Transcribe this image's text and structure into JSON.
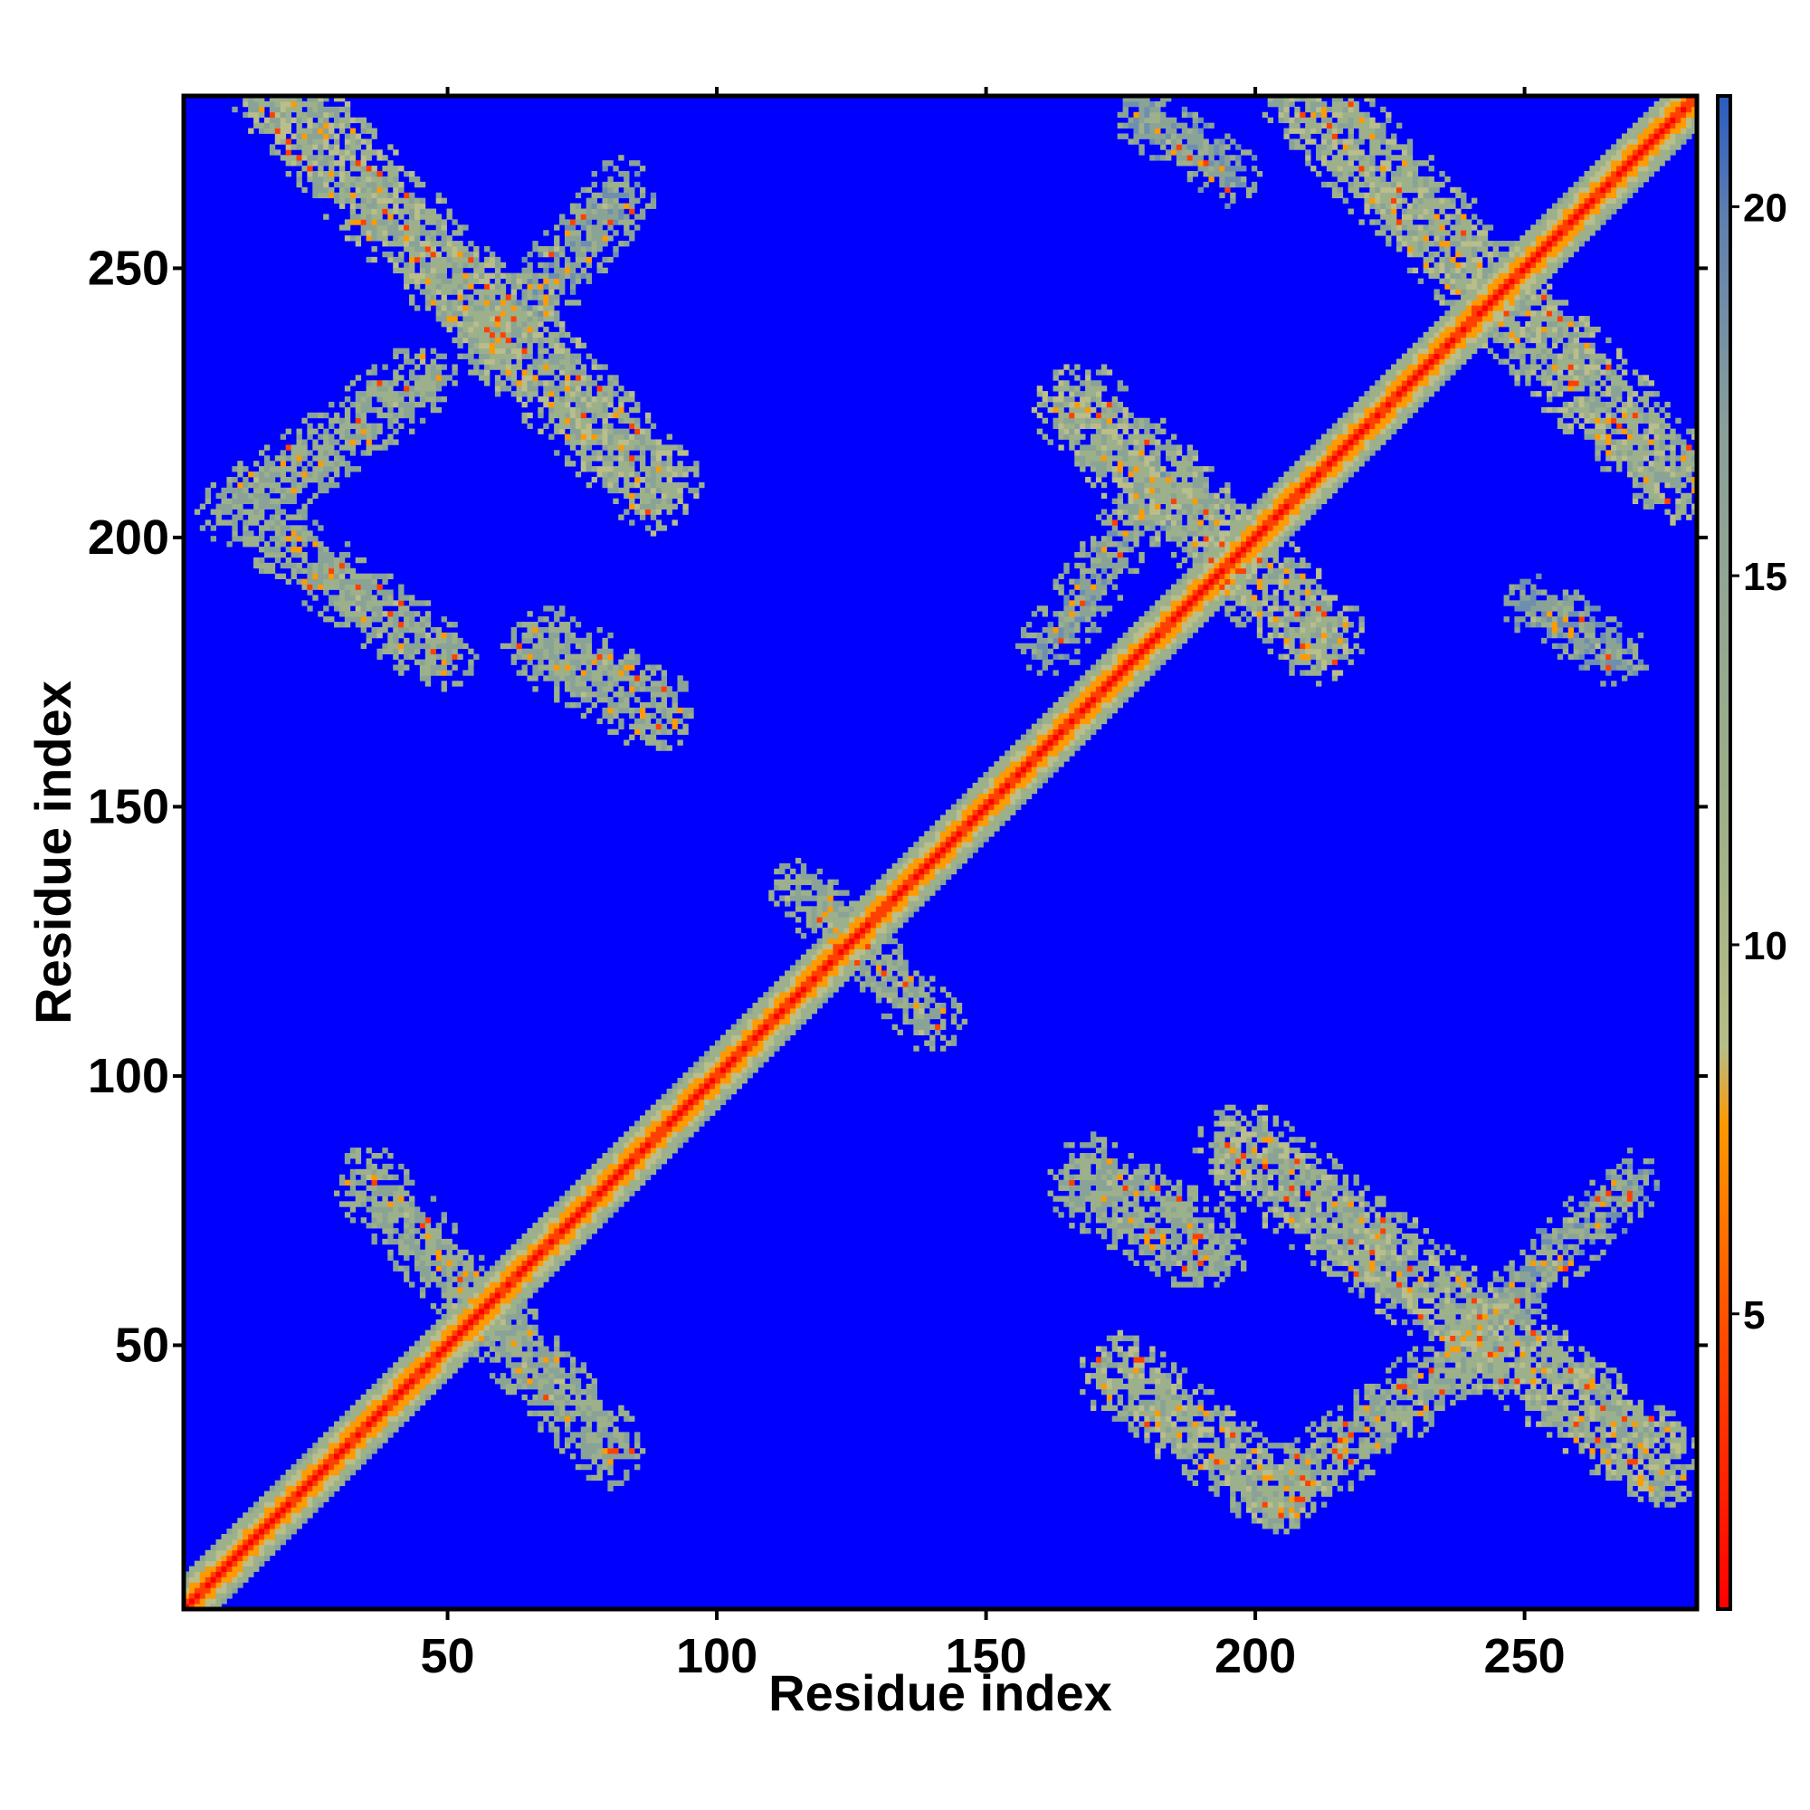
{
  "chart_data": {
    "type": "heatmap",
    "title": "",
    "xlabel": "Residue index",
    "ylabel": "Residue index",
    "xlim": [
      1,
      282
    ],
    "ylim": [
      1,
      282
    ],
    "x_ticks": [
      50,
      100,
      150,
      200,
      250
    ],
    "y_ticks": [
      50,
      100,
      150,
      200,
      250
    ],
    "colorbar": {
      "range": [
        1,
        21.5
      ],
      "ticks": [
        5,
        10,
        15,
        20
      ],
      "colors": {
        "low": "#ff0000",
        "mid_low": "#ff8c00",
        "mid": "#9aae8a",
        "high": "#5f7fb0",
        "background": "#0000ff"
      }
    },
    "background_value": 21,
    "diagonal": {
      "from": [
        1,
        1
      ],
      "to": [
        282,
        282
      ],
      "center_value": 2,
      "halfwidth_residues": 6
    },
    "contact_segments": [
      {
        "from": [
          18,
          282
        ],
        "to": [
          88,
          210
        ],
        "halfwidth": 6,
        "value": 11
      },
      {
        "from": [
          10,
          205
        ],
        "to": [
          45,
          230
        ],
        "halfwidth": 4,
        "value": 12
      },
      {
        "from": [
          18,
          200
        ],
        "to": [
          48,
          178
        ],
        "halfwidth": 4,
        "value": 12
      },
      {
        "from": [
          58,
          236
        ],
        "to": [
          82,
          264
        ],
        "halfwidth": 4,
        "value": 13
      },
      {
        "from": [
          68,
          180
        ],
        "to": [
          88,
          168
        ],
        "halfwidth": 5,
        "value": 12
      },
      {
        "from": [
          168,
          224
        ],
        "to": [
          212,
          182
        ],
        "halfwidth": 6,
        "value": 11
      },
      {
        "from": [
          162,
          180
        ],
        "to": [
          182,
          210
        ],
        "halfwidth": 3,
        "value": 13
      },
      {
        "from": [
          210,
          282
        ],
        "to": [
          278,
          212
        ],
        "halfwidth": 6,
        "value": 11
      },
      {
        "from": [
          170,
          80
        ],
        "to": [
          190,
          68
        ],
        "halfwidth": 6,
        "value": 12
      },
      {
        "from": [
          198,
          86
        ],
        "to": [
          275,
          28
        ],
        "halfwidth": 6,
        "value": 11
      },
      {
        "from": [
          175,
          44
        ],
        "to": [
          205,
          22
        ],
        "halfwidth": 5,
        "value": 11
      },
      {
        "from": [
          205,
          22
        ],
        "to": [
          240,
          48
        ],
        "halfwidth": 4,
        "value": 12
      },
      {
        "from": [
          240,
          50
        ],
        "to": [
          270,
          80
        ],
        "halfwidth": 3,
        "value": 13
      },
      {
        "from": [
          35,
          80
        ],
        "to": [
          80,
          30
        ],
        "halfwidth": 4,
        "value": 12
      },
      {
        "from": [
          115,
          135
        ],
        "to": [
          140,
          110
        ],
        "halfwidth": 3,
        "value": 12
      },
      {
        "from": [
          180,
          278
        ],
        "to": [
          195,
          268
        ],
        "halfwidth": 3,
        "value": 14
      },
      {
        "from": [
          252,
          188
        ],
        "to": [
          268,
          178
        ],
        "halfwidth": 3,
        "value": 14
      }
    ]
  }
}
